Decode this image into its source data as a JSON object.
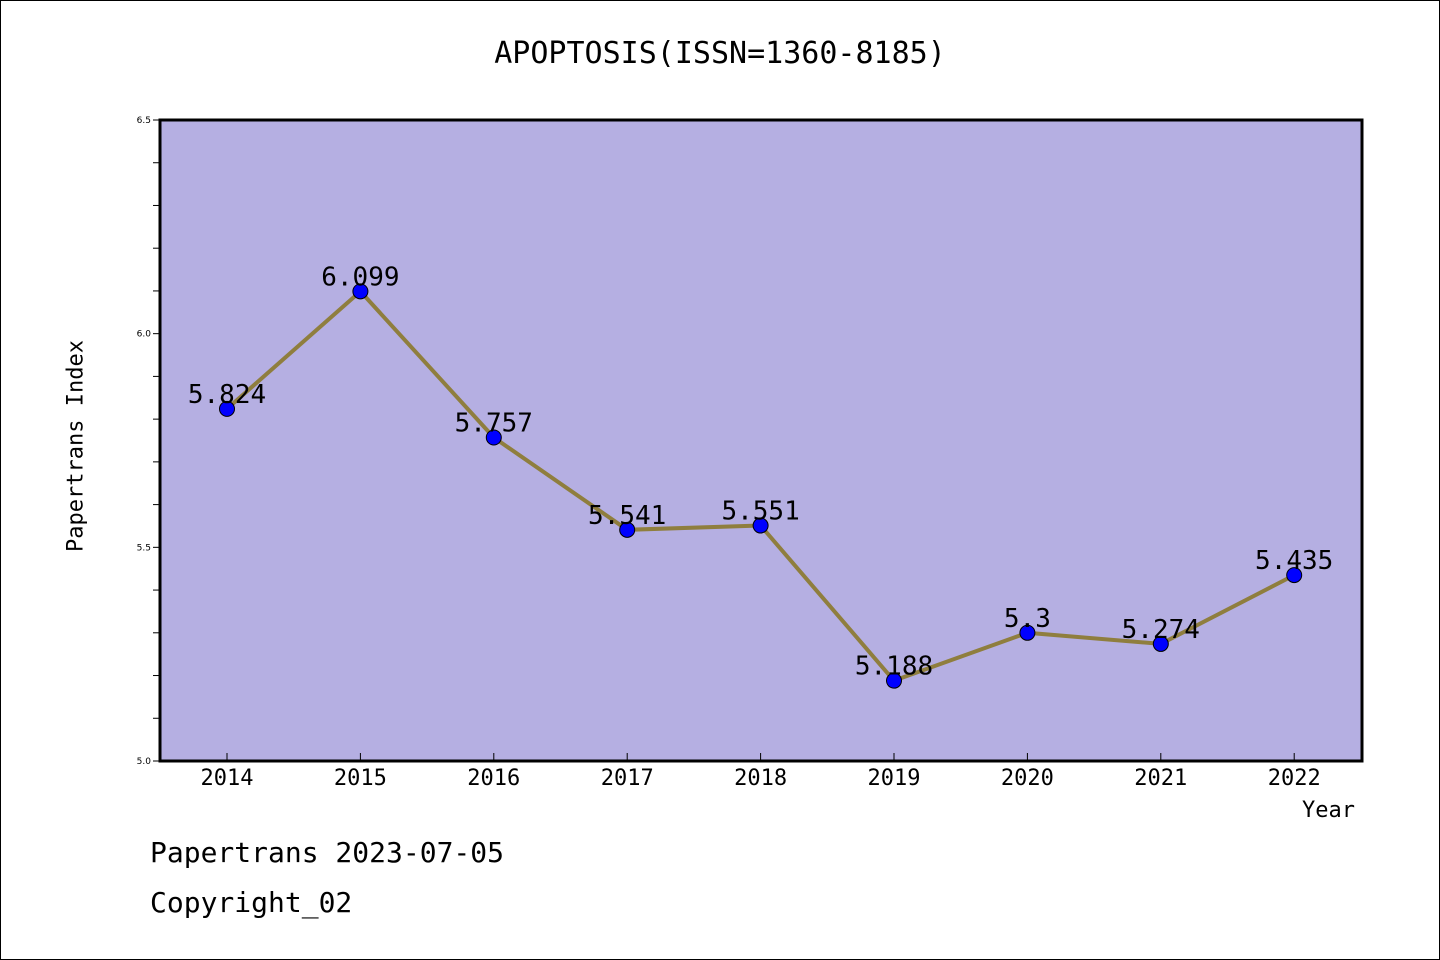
{
  "title": "APOPTOSIS(ISSN=1360-8185)",
  "footer": {
    "line1": "Papertrans 2023-07-05",
    "line2": "Copyright_02"
  },
  "colors": {
    "plot_background": "#b5afe2",
    "line": "#8f7e3e",
    "marker": "#0000ff"
  },
  "chart_data": {
    "type": "line",
    "title": "APOPTOSIS(ISSN=1360-8185)",
    "xlabel": "Year",
    "ylabel": "Papertrans Index",
    "categories": [
      "2014",
      "2015",
      "2016",
      "2017",
      "2018",
      "2019",
      "2020",
      "2021",
      "2022"
    ],
    "values": [
      5.824,
      6.099,
      5.757,
      5.541,
      5.551,
      5.188,
      5.3,
      5.274,
      5.435
    ],
    "data_labels": [
      "5.824",
      "6.099",
      "5.757",
      "5.541",
      "5.551",
      "5.188",
      "5.3",
      "5.274",
      "5.435"
    ],
    "ylim": [
      5.0,
      6.5
    ],
    "yticks": [
      "5.0",
      "5.5",
      "6.0",
      "6.5"
    ],
    "grid": false,
    "legend": "none"
  }
}
